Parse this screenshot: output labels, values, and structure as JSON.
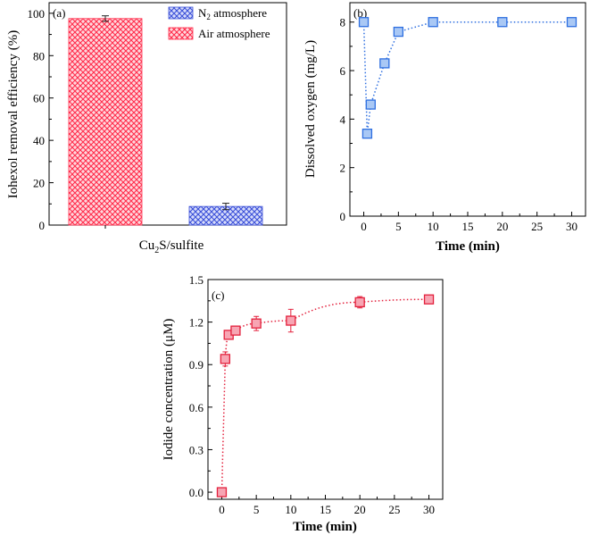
{
  "chart_data": [
    {
      "type": "bar",
      "panel_label": "(a)",
      "categories": [
        "Air atmosphere",
        "N2 atmosphere"
      ],
      "values": [
        97.5,
        8.8
      ],
      "errors": [
        1.3,
        1.5
      ],
      "xlabel_main": "Cu",
      "xlabel_sub": "2",
      "xlabel_rest": "S/sulfite",
      "ylabel": "Iohexol removal efficiency (%)",
      "ylim": [
        0,
        105
      ],
      "yticks": [
        0,
        20,
        40,
        60,
        80,
        100
      ],
      "ytick_labels": [
        "0",
        "20",
        "40",
        "60",
        "80",
        "100"
      ],
      "legend": [
        {
          "main": "N",
          "sub": "2",
          "rest": " atmosphere",
          "color": "#3a4fd8"
        },
        {
          "main": "Air atmosphere",
          "sub": "",
          "rest": "",
          "color": "#ff2b4a"
        }
      ],
      "legend_position": "top-right",
      "colors": {
        "air": "#ff2b4a",
        "n2": "#3a4fd8"
      }
    },
    {
      "type": "line",
      "panel_label": "(b)",
      "x": [
        0,
        0.5,
        1,
        3,
        5,
        10,
        20,
        30
      ],
      "y": [
        8.0,
        3.4,
        4.6,
        6.3,
        7.6,
        8.0,
        8.0,
        8.0
      ],
      "xlabel": "Time (min)",
      "ylabel": "Dissolved oxygen (mg/L)",
      "xlim": [
        -2,
        32
      ],
      "ylim": [
        0,
        8.8
      ],
      "xticks": [
        0,
        5,
        10,
        15,
        20,
        25,
        30
      ],
      "xtick_labels": [
        "0",
        "5",
        "10",
        "15",
        "20",
        "25",
        "30"
      ],
      "yticks": [
        0,
        2,
        4,
        6,
        8
      ],
      "ytick_labels": [
        "0",
        "2",
        "4",
        "6",
        "8"
      ],
      "color": "#2e6fe0",
      "fill": "#a9c8f5"
    },
    {
      "type": "scatter",
      "panel_label": "(c)",
      "x": [
        0,
        0.5,
        1,
        2,
        5,
        10,
        20,
        30
      ],
      "y": [
        0.0,
        0.94,
        1.11,
        1.14,
        1.19,
        1.21,
        1.34,
        1.36
      ],
      "errors": [
        0.0,
        0.05,
        0.03,
        0.03,
        0.05,
        0.08,
        0.04,
        0.02
      ],
      "xlabel": "Time (min)",
      "ylabel": "Iodide concentration (μM)",
      "xlim": [
        -2,
        32
      ],
      "ylim": [
        -0.05,
        1.5
      ],
      "xticks": [
        0,
        5,
        10,
        15,
        20,
        25,
        30
      ],
      "xtick_labels": [
        "0",
        "5",
        "10",
        "15",
        "20",
        "25",
        "30"
      ],
      "yticks": [
        0.0,
        0.3,
        0.6,
        0.9,
        1.2,
        1.5
      ],
      "ytick_labels": [
        "0.0",
        "0.3",
        "0.6",
        "0.9",
        "1.2",
        "1.5"
      ],
      "color": "#e3203c",
      "fill": "#f7a5b3"
    }
  ]
}
